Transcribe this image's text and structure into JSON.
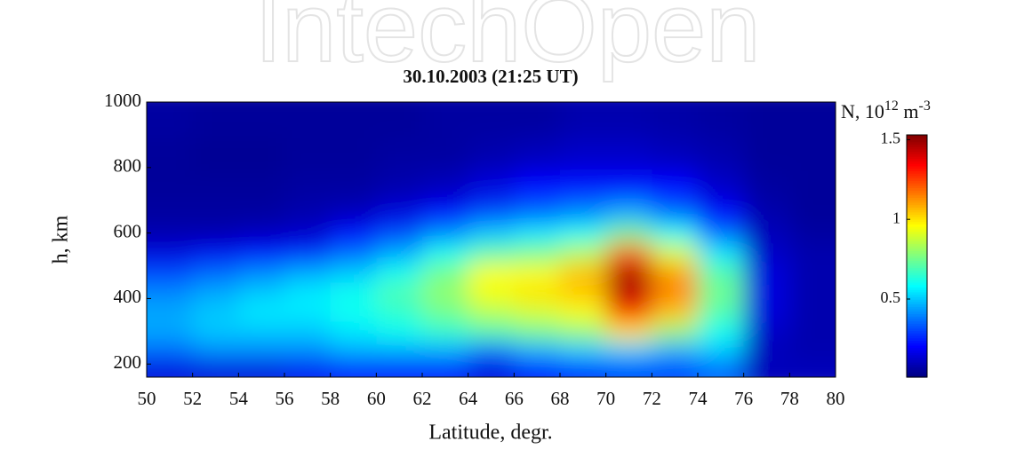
{
  "watermark": "IntechOpen",
  "chart_data": {
    "type": "heatmap",
    "title": "30.10.2003 (21:25 UT)",
    "x_label": "Latitude, degr.",
    "y_label": "h, km",
    "colorbar_label": [
      "N, 10",
      "12",
      " m",
      "-3"
    ],
    "xlim": [
      50,
      80
    ],
    "xticks": [
      50,
      52,
      54,
      56,
      58,
      60,
      62,
      64,
      66,
      68,
      70,
      72,
      74,
      76,
      78,
      80
    ],
    "ylim": [
      160,
      1000
    ],
    "yticks": [
      200,
      400,
      600,
      800,
      1000
    ],
    "clim": [
      0.01,
      1.53
    ],
    "cticks": [
      0.5,
      1,
      1.5
    ],
    "colormap": "jet",
    "x": [
      51,
      53,
      55,
      57,
      59,
      61,
      63,
      65,
      67,
      69,
      71,
      73,
      75,
      77,
      79
    ],
    "y": [
      180,
      240,
      300,
      360,
      420,
      480,
      540,
      600,
      660,
      740,
      840,
      940
    ],
    "z": [
      [
        0.15,
        0.15,
        0.15,
        0.18,
        0.2,
        0.2,
        0.2,
        0.15,
        0.2,
        0.25,
        0.3,
        0.3,
        0.35,
        0.1,
        0.1
      ],
      [
        0.35,
        0.4,
        0.4,
        0.4,
        0.45,
        0.45,
        0.45,
        0.35,
        0.45,
        0.5,
        0.5,
        0.45,
        0.5,
        0.1,
        0.08
      ],
      [
        0.45,
        0.5,
        0.5,
        0.5,
        0.55,
        0.6,
        0.65,
        0.7,
        0.75,
        0.8,
        1.0,
        0.8,
        0.6,
        0.12,
        0.08
      ],
      [
        0.45,
        0.5,
        0.55,
        0.55,
        0.6,
        0.65,
        0.75,
        0.85,
        0.9,
        0.95,
        1.3,
        1.05,
        0.7,
        0.15,
        0.08
      ],
      [
        0.4,
        0.45,
        0.5,
        0.55,
        0.6,
        0.7,
        0.8,
        0.95,
        1.0,
        1.05,
        1.45,
        1.15,
        0.75,
        0.15,
        0.08
      ],
      [
        0.3,
        0.35,
        0.4,
        0.45,
        0.5,
        0.6,
        0.75,
        0.95,
        0.95,
        1.05,
        1.45,
        1.1,
        0.7,
        0.15,
        0.08
      ],
      [
        0.15,
        0.18,
        0.2,
        0.25,
        0.35,
        0.45,
        0.6,
        0.7,
        0.75,
        0.85,
        1.2,
        0.9,
        0.55,
        0.12,
        0.08
      ],
      [
        0.08,
        0.08,
        0.1,
        0.12,
        0.2,
        0.3,
        0.4,
        0.5,
        0.55,
        0.6,
        0.75,
        0.6,
        0.35,
        0.1,
        0.06
      ],
      [
        0.06,
        0.06,
        0.06,
        0.08,
        0.1,
        0.15,
        0.2,
        0.3,
        0.35,
        0.4,
        0.45,
        0.35,
        0.2,
        0.08,
        0.05
      ],
      [
        0.05,
        0.05,
        0.05,
        0.06,
        0.06,
        0.08,
        0.1,
        0.15,
        0.2,
        0.22,
        0.22,
        0.2,
        0.12,
        0.06,
        0.05
      ],
      [
        0.05,
        0.04,
        0.04,
        0.05,
        0.05,
        0.06,
        0.06,
        0.08,
        0.1,
        0.12,
        0.12,
        0.1,
        0.08,
        0.05,
        0.05
      ],
      [
        0.06,
        0.05,
        0.05,
        0.05,
        0.05,
        0.05,
        0.06,
        0.06,
        0.06,
        0.08,
        0.08,
        0.07,
        0.06,
        0.05,
        0.05
      ]
    ]
  }
}
